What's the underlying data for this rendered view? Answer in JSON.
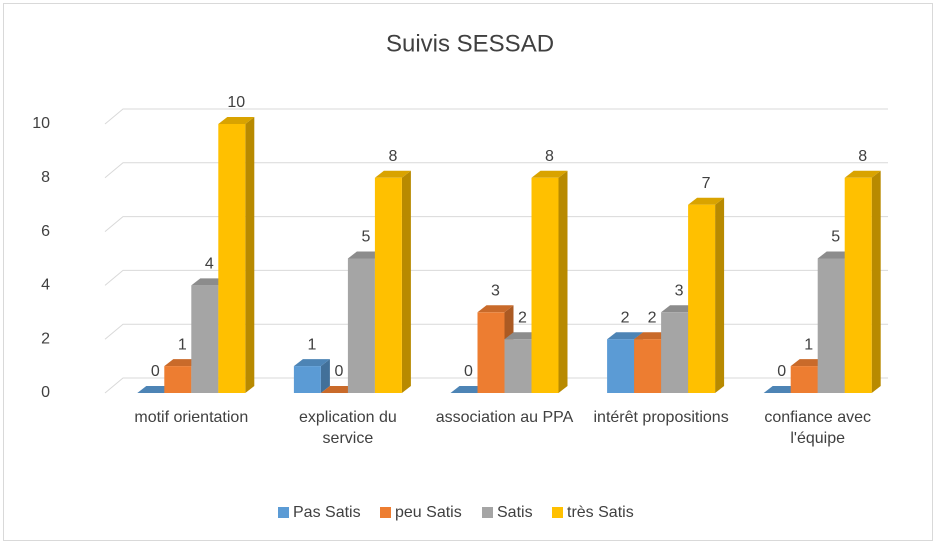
{
  "chart_data": {
    "type": "bar3d",
    "title": "Suivis SESSAD",
    "categories": [
      "motif orientation",
      "explication du service",
      "association au PPA",
      "intérêt propositions",
      "confiance avec l'équipe"
    ],
    "series": [
      {
        "name": "Pas Satis",
        "color": "#5b9bd5",
        "values": [
          0,
          1,
          0,
          2,
          0
        ]
      },
      {
        "name": "peu Satis",
        "color": "#ed7d31",
        "values": [
          1,
          0,
          3,
          2,
          1
        ]
      },
      {
        "name": "Satis",
        "color": "#a5a5a5",
        "values": [
          4,
          5,
          2,
          3,
          5
        ]
      },
      {
        "name": "très Satis",
        "color": "#ffc000",
        "values": [
          10,
          8,
          8,
          7,
          8
        ]
      }
    ],
    "ylim": [
      0,
      10
    ],
    "yticks": [
      0,
      2,
      4,
      6,
      8,
      10
    ],
    "grid": true,
    "legend": "bottom"
  }
}
